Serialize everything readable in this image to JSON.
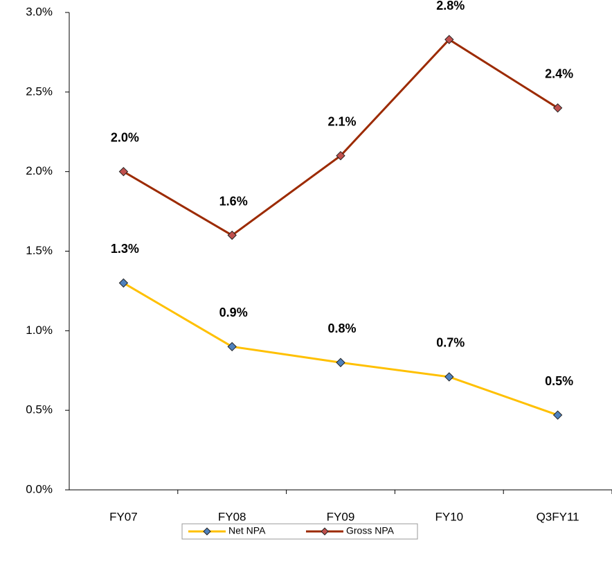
{
  "chart_data": {
    "type": "line",
    "categories": [
      "FY07",
      "FY08",
      "FY09",
      "FY10",
      "Q3FY11"
    ],
    "series": [
      {
        "name": "Net NPA",
        "color": "#FFC000",
        "marker_color": "#4F81BD",
        "values": [
          1.3,
          0.9,
          0.8,
          0.71,
          0.47
        ],
        "value_labels": [
          "1.3%",
          "0.9%",
          "0.8%",
          "0.7%",
          "0.5%"
        ]
      },
      {
        "name": "Gross NPA",
        "color": "#9C2A00",
        "marker_color": "#C0504D",
        "values": [
          2.0,
          1.6,
          2.1,
          2.83,
          2.4
        ],
        "value_labels": [
          "2.0%",
          "1.6%",
          "2.1%",
          "2.8%",
          "2.4%"
        ]
      }
    ],
    "ylim": [
      0,
      3
    ],
    "yticks": [
      {
        "value": 0,
        "label": "0.0%"
      },
      {
        "value": 0.5,
        "label": "0.5%"
      },
      {
        "value": 1,
        "label": "1.0%"
      },
      {
        "value": 1.5,
        "label": "1.5%"
      },
      {
        "value": 2,
        "label": "2.0%"
      },
      {
        "value": 2.5,
        "label": "2.5%"
      },
      {
        "value": 3,
        "label": "3.0%"
      }
    ],
    "grid": false,
    "legend": "bottom"
  }
}
